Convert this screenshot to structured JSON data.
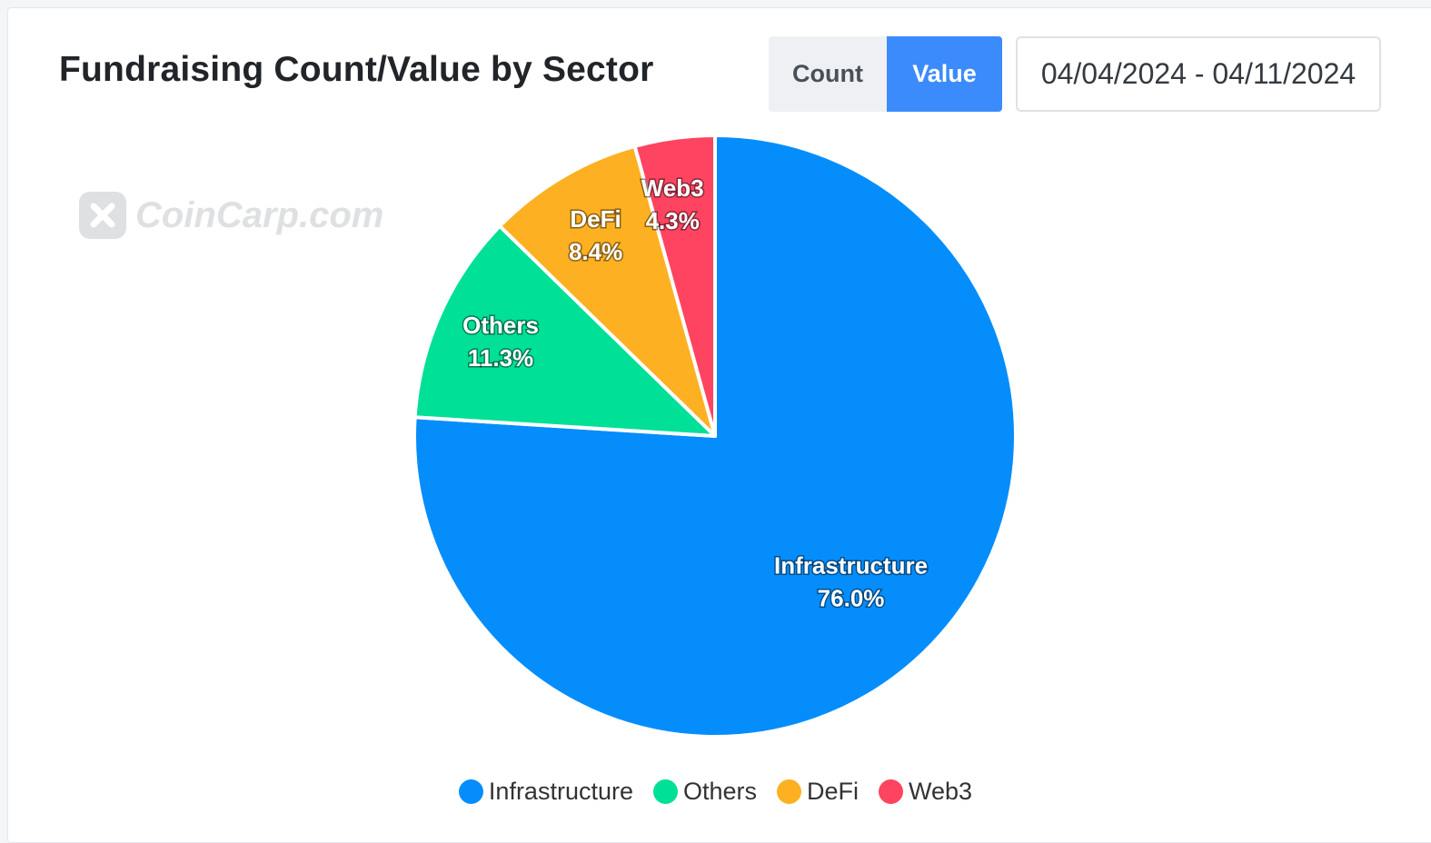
{
  "header": {
    "title": "Fundraising Count/Value by Sector",
    "toggle": {
      "count_label": "Count",
      "value_label": "Value",
      "selected": "Value"
    },
    "date_range": "04/04/2024 - 04/11/2024"
  },
  "watermark": {
    "text": "CoinCarp.com",
    "icon": "coincarp-logo-icon"
  },
  "colors": {
    "Infrastructure": "#058dfb",
    "Others": "#00e096",
    "DeFi": "#fdb022",
    "Web3": "#fe4460",
    "toggle_active": "#3b8bfd"
  },
  "chart_data": {
    "type": "pie",
    "title": "Fundraising Count/Value by Sector",
    "metric": "Value",
    "categories": [
      "Infrastructure",
      "Others",
      "DeFi",
      "Web3"
    ],
    "values": [
      76.0,
      11.3,
      8.4,
      4.3
    ],
    "value_labels": [
      "76.0%",
      "11.3%",
      "8.4%",
      "4.3%"
    ],
    "legend_position": "bottom"
  }
}
